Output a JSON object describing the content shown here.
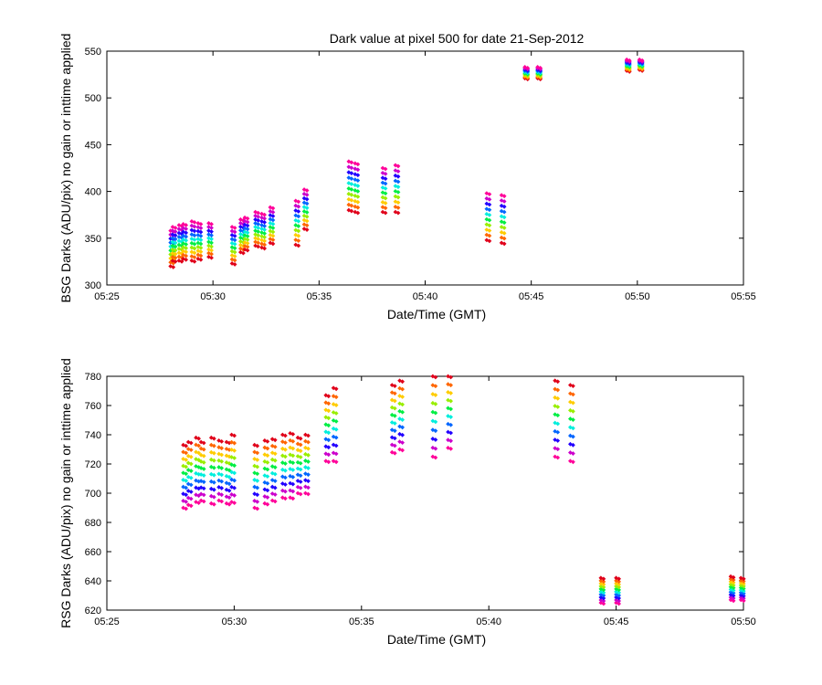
{
  "chart_data": [
    {
      "type": "scatter",
      "title": "Dark value at pixel 500 for date 21-Sep-2012",
      "xlabel": "Date/Time (GMT)",
      "ylabel": "BSG Darks (ADU/pix) no gain or inttime applied",
      "x_ticks": [
        "05:25",
        "05:30",
        "05:35",
        "05:40",
        "05:45",
        "05:50",
        "05:55"
      ],
      "x_range_min": [
        25,
        55
      ],
      "y_ticks": [
        300,
        350,
        400,
        450,
        500,
        550
      ],
      "ylim": [
        300,
        550
      ],
      "grid": false,
      "color_scale": [
        "#e0001a",
        "#ff6600",
        "#ffcc00",
        "#99ee00",
        "#00ee44",
        "#00eedd",
        "#0066ff",
        "#2200ff",
        "#cc00cc",
        "#ff0099"
      ],
      "columns": [
        {
          "x": 28.0,
          "low": 320,
          "high": 358
        },
        {
          "x": 28.1,
          "low": 326,
          "high": 362
        },
        {
          "x": 28.4,
          "low": 326,
          "high": 364
        },
        {
          "x": 28.6,
          "low": 328,
          "high": 365
        },
        {
          "x": 29.0,
          "low": 326,
          "high": 368
        },
        {
          "x": 29.3,
          "low": 328,
          "high": 366
        },
        {
          "x": 29.8,
          "low": 330,
          "high": 366
        },
        {
          "x": 30.9,
          "low": 323,
          "high": 362
        },
        {
          "x": 31.3,
          "low": 335,
          "high": 370
        },
        {
          "x": 31.5,
          "low": 338,
          "high": 372
        },
        {
          "x": 32.0,
          "low": 342,
          "high": 378
        },
        {
          "x": 32.3,
          "low": 340,
          "high": 376
        },
        {
          "x": 32.7,
          "low": 345,
          "high": 383
        },
        {
          "x": 33.9,
          "low": 343,
          "high": 390
        },
        {
          "x": 34.3,
          "low": 360,
          "high": 402
        },
        {
          "x": 36.4,
          "low": 380,
          "high": 432
        },
        {
          "x": 36.7,
          "low": 378,
          "high": 430
        },
        {
          "x": 38.0,
          "low": 378,
          "high": 425
        },
        {
          "x": 38.6,
          "low": 378,
          "high": 428
        },
        {
          "x": 42.9,
          "low": 348,
          "high": 398
        },
        {
          "x": 43.6,
          "low": 345,
          "high": 396
        },
        {
          "x": 44.7,
          "low": 521,
          "high": 533
        },
        {
          "x": 45.3,
          "low": 521,
          "high": 533
        },
        {
          "x": 49.5,
          "low": 529,
          "high": 541
        },
        {
          "x": 50.1,
          "low": 530,
          "high": 541
        }
      ]
    },
    {
      "type": "scatter",
      "title": "",
      "xlabel": "Date/Time (GMT)",
      "ylabel": "RSG Darks (ADU/pix) no gain or inttime applied",
      "x_ticks": [
        "05:25",
        "05:30",
        "05:35",
        "05:40",
        "05:45",
        "05:50"
      ],
      "x_range_min": [
        25,
        50
      ],
      "y_ticks": [
        620,
        640,
        660,
        680,
        700,
        720,
        740,
        760,
        780
      ],
      "ylim": [
        620,
        780
      ],
      "grid": false,
      "color_scale": [
        "#e0001a",
        "#ff6600",
        "#ffcc00",
        "#99ee00",
        "#00ee44",
        "#00eedd",
        "#0066ff",
        "#2200ff",
        "#cc00cc",
        "#ff0099"
      ],
      "columns": [
        {
          "x": 28.0,
          "low": 690,
          "high": 733
        },
        {
          "x": 28.2,
          "low": 692,
          "high": 735
        },
        {
          "x": 28.5,
          "low": 694,
          "high": 738
        },
        {
          "x": 28.7,
          "low": 695,
          "high": 735
        },
        {
          "x": 29.1,
          "low": 693,
          "high": 738
        },
        {
          "x": 29.4,
          "low": 695,
          "high": 736
        },
        {
          "x": 29.7,
          "low": 693,
          "high": 735
        },
        {
          "x": 29.9,
          "low": 694,
          "high": 740
        },
        {
          "x": 30.8,
          "low": 690,
          "high": 733
        },
        {
          "x": 31.2,
          "low": 693,
          "high": 736
        },
        {
          "x": 31.5,
          "low": 695,
          "high": 737
        },
        {
          "x": 31.9,
          "low": 697,
          "high": 740
        },
        {
          "x": 32.2,
          "low": 697,
          "high": 741
        },
        {
          "x": 32.5,
          "low": 700,
          "high": 738
        },
        {
          "x": 32.8,
          "low": 700,
          "high": 740
        },
        {
          "x": 33.6,
          "low": 722,
          "high": 767
        },
        {
          "x": 33.9,
          "low": 722,
          "high": 772
        },
        {
          "x": 36.2,
          "low": 728,
          "high": 774
        },
        {
          "x": 36.5,
          "low": 730,
          "high": 777
        },
        {
          "x": 37.8,
          "low": 725,
          "high": 780
        },
        {
          "x": 38.4,
          "low": 731,
          "high": 780
        },
        {
          "x": 42.6,
          "low": 725,
          "high": 777
        },
        {
          "x": 43.2,
          "low": 722,
          "high": 774
        },
        {
          "x": 44.4,
          "low": 625,
          "high": 642
        },
        {
          "x": 45.0,
          "low": 625,
          "high": 642
        },
        {
          "x": 49.5,
          "low": 627,
          "high": 643
        },
        {
          "x": 49.9,
          "low": 627,
          "high": 642
        }
      ]
    }
  ]
}
